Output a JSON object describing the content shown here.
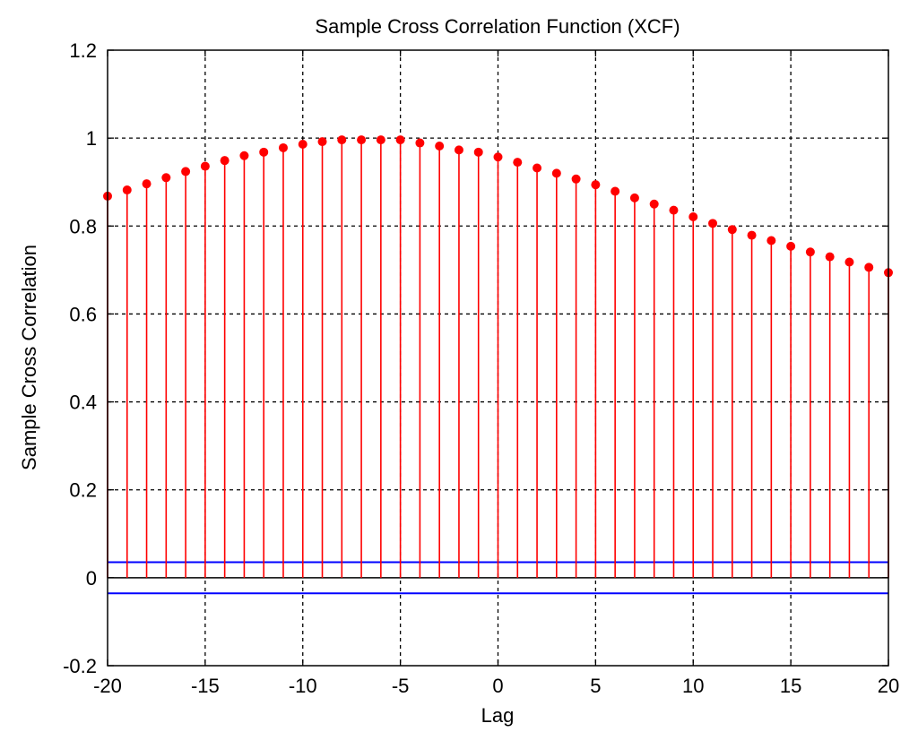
{
  "chart_data": {
    "type": "stem",
    "title": "Sample Cross Correlation Function (XCF)",
    "xlabel": "Lag",
    "ylabel": "Sample Cross Correlation",
    "xlim": [
      -20,
      20
    ],
    "ylim": [
      -0.2,
      1.2
    ],
    "x_ticks": [
      -20,
      -15,
      -10,
      -5,
      0,
      5,
      10,
      15,
      20
    ],
    "x_tick_labels": [
      "-20",
      "-15",
      "-10",
      "-5",
      "0",
      "5",
      "10",
      "15",
      "20"
    ],
    "y_ticks": [
      -0.2,
      0,
      0.2,
      0.4,
      0.6,
      0.8,
      1,
      1.2
    ],
    "y_tick_labels": [
      "-0.2",
      "0",
      "0.2",
      "0.4",
      "0.6",
      "0.8",
      "1",
      "1.2"
    ],
    "grid": true,
    "lags": [
      -20,
      -19,
      -18,
      -17,
      -16,
      -15,
      -14,
      -13,
      -12,
      -11,
      -10,
      -9,
      -8,
      -7,
      -6,
      -5,
      -4,
      -3,
      -2,
      -1,
      0,
      1,
      2,
      3,
      4,
      5,
      6,
      7,
      8,
      9,
      10,
      11,
      12,
      13,
      14,
      15,
      16,
      17,
      18,
      19,
      20
    ],
    "values": [
      0.868,
      0.882,
      0.896,
      0.91,
      0.924,
      0.936,
      0.949,
      0.96,
      0.968,
      0.978,
      0.986,
      0.992,
      0.996,
      0.996,
      0.996,
      0.996,
      0.989,
      0.982,
      0.973,
      0.968,
      0.957,
      0.945,
      0.932,
      0.92,
      0.907,
      0.894,
      0.879,
      0.864,
      0.85,
      0.836,
      0.821,
      0.806,
      0.792,
      0.779,
      0.767,
      0.754,
      0.741,
      0.73,
      0.718,
      0.706,
      0.694
    ],
    "confidence_bounds": [
      0.0354,
      -0.0354
    ],
    "colors": {
      "stem": "#ff0000",
      "marker": "#ff0000",
      "bounds": "#0000ff",
      "baseline": "#000000",
      "grid": "#000000"
    }
  }
}
